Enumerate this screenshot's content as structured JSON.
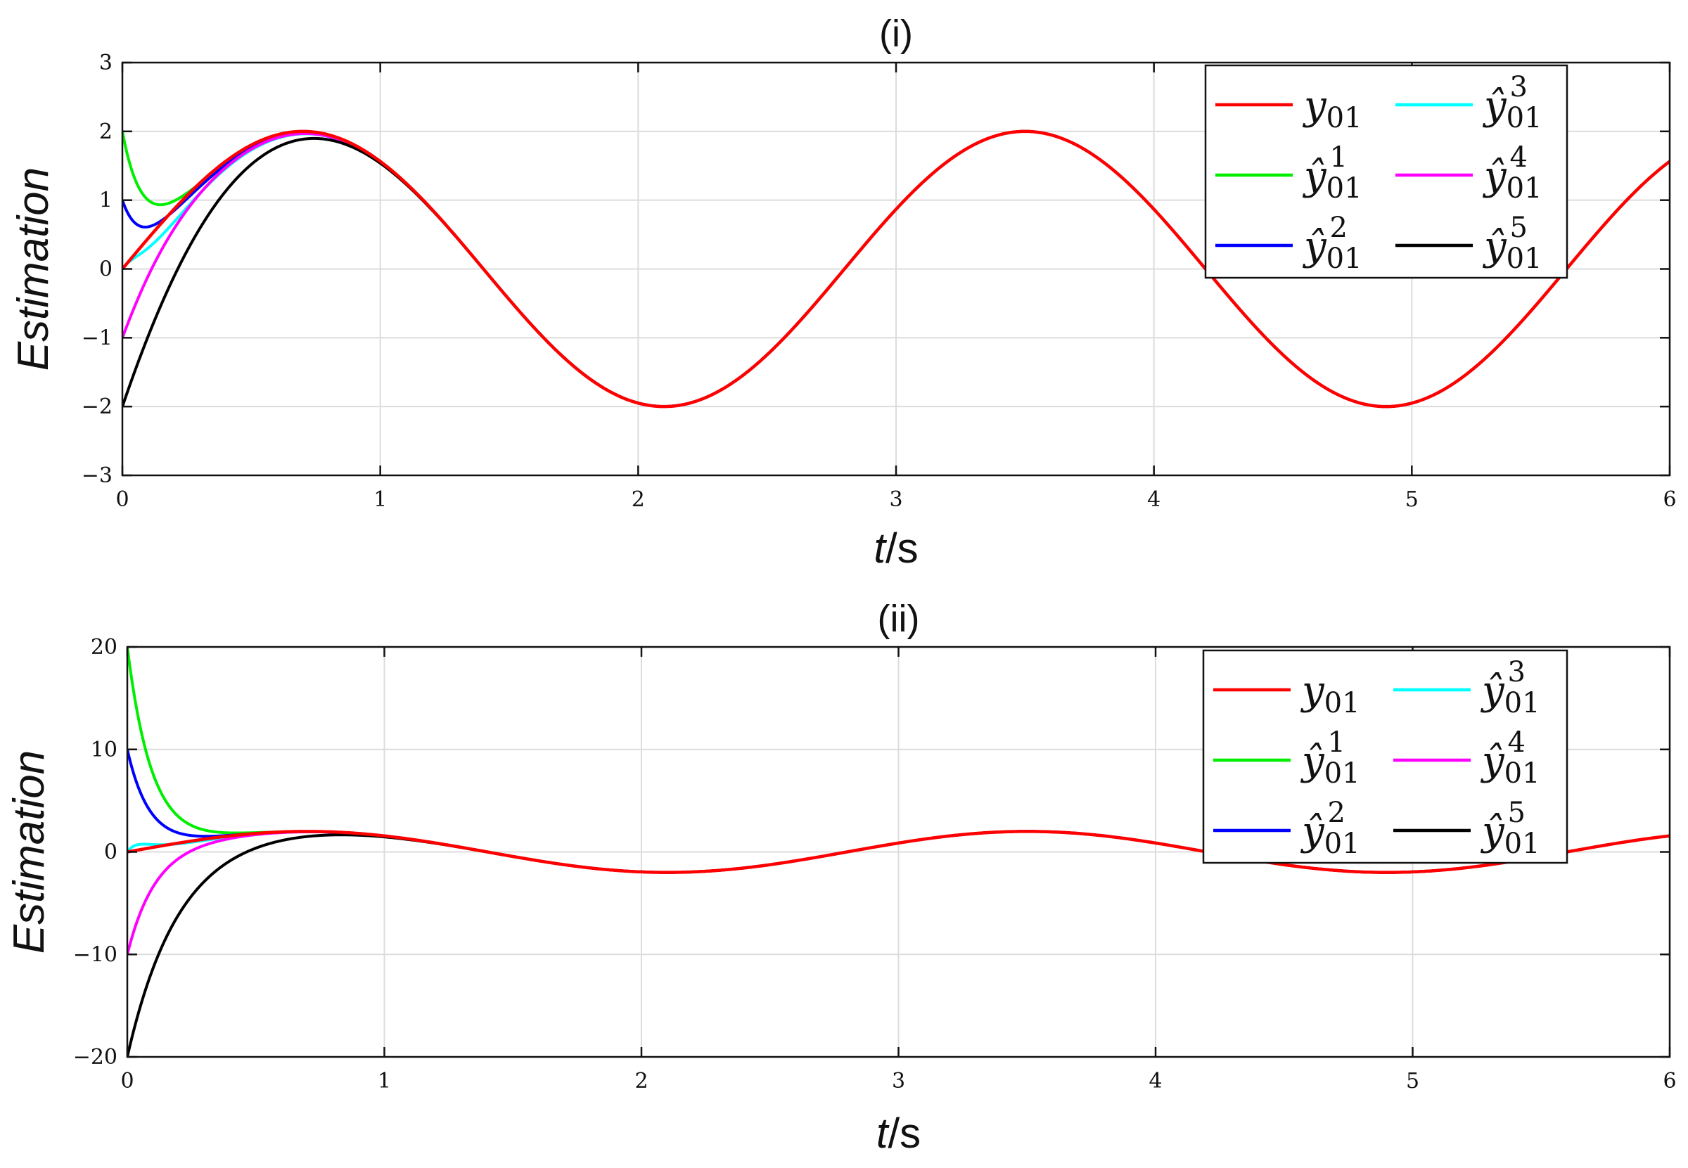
{
  "chart_data": [
    {
      "type": "line",
      "panel_title": "(i)",
      "xlabel": "t/s",
      "ylabel": "Estimation",
      "xlim": [
        0,
        6
      ],
      "ylim": [
        -3,
        3
      ],
      "xticks": [
        0,
        1,
        2,
        3,
        4,
        5,
        6
      ],
      "yticks": [
        3,
        2,
        1,
        0,
        -1,
        -2,
        -3
      ],
      "ytick_labels": [
        "3",
        "2",
        "1",
        "0",
        "−1",
        "−2",
        "−3"
      ],
      "grid": true,
      "legend_position": "top-right",
      "legend_columns": 2,
      "series": [
        {
          "name": "y01",
          "color": "#ff0000",
          "initial": 0
        },
        {
          "name": "ŷ01^1",
          "color": "#00ee00",
          "initial": 2
        },
        {
          "name": "ŷ01^2",
          "color": "#0000ff",
          "initial": 1
        },
        {
          "name": "ŷ01^3",
          "color": "#00ffff",
          "initial": 0
        },
        {
          "name": "ŷ01^4",
          "color": "#ff00ff",
          "initial": -1
        },
        {
          "name": "ŷ01^5",
          "color": "#000000",
          "initial": -2
        }
      ],
      "reference_points": {
        "x": [
          0,
          0.7,
          2.1,
          3.5,
          4.9,
          6.0
        ],
        "y": [
          0,
          2,
          -2,
          2,
          -2,
          1.6
        ]
      }
    },
    {
      "type": "line",
      "panel_title": "(ii)",
      "xlabel": "t/s",
      "ylabel": "Estimation",
      "xlim": [
        0,
        6
      ],
      "ylim": [
        -20,
        20
      ],
      "xticks": [
        0,
        1,
        2,
        3,
        4,
        5,
        6
      ],
      "yticks": [
        20,
        10,
        0,
        -10,
        -20
      ],
      "ytick_labels": [
        "20",
        "10",
        "0",
        "−10",
        "−20"
      ],
      "grid": true,
      "legend_position": "top-right",
      "legend_columns": 2,
      "series": [
        {
          "name": "y01",
          "color": "#ff0000",
          "initial": 0
        },
        {
          "name": "ŷ01^1",
          "color": "#00ee00",
          "initial": 20
        },
        {
          "name": "ŷ01^2",
          "color": "#0000ff",
          "initial": 10
        },
        {
          "name": "ŷ01^3",
          "color": "#00ffff",
          "initial": 0
        },
        {
          "name": "ŷ01^4",
          "color": "#ff00ff",
          "initial": -10
        },
        {
          "name": "ŷ01^5",
          "color": "#000000",
          "initial": -20
        }
      ],
      "reference_points": {
        "x": [
          0,
          0.7,
          2.1,
          3.5,
          4.9,
          6.0
        ],
        "y": [
          0,
          2,
          -2,
          2,
          -2,
          1.6
        ]
      }
    }
  ]
}
